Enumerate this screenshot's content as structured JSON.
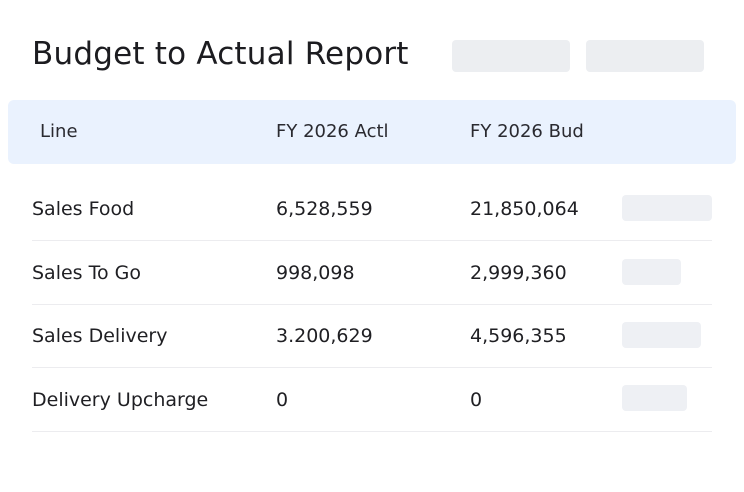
{
  "header": {
    "title": "Budget to Actual Report"
  },
  "table": {
    "columns": {
      "line": "Line",
      "actual": "FY 2026 Actl",
      "budget": "FY 2026 Bud"
    },
    "rows": [
      {
        "line": "Sales Food",
        "actual": "6,528,559",
        "budget": "21,850,064"
      },
      {
        "line": "Sales To Go",
        "actual": "998,098",
        "budget": "2,999,360"
      },
      {
        "line": "Sales Delivery",
        "actual": "3.200,629",
        "budget": "4,596,355"
      },
      {
        "line": "Delivery Upcharge",
        "actual": "0",
        "budget": "0"
      }
    ]
  }
}
